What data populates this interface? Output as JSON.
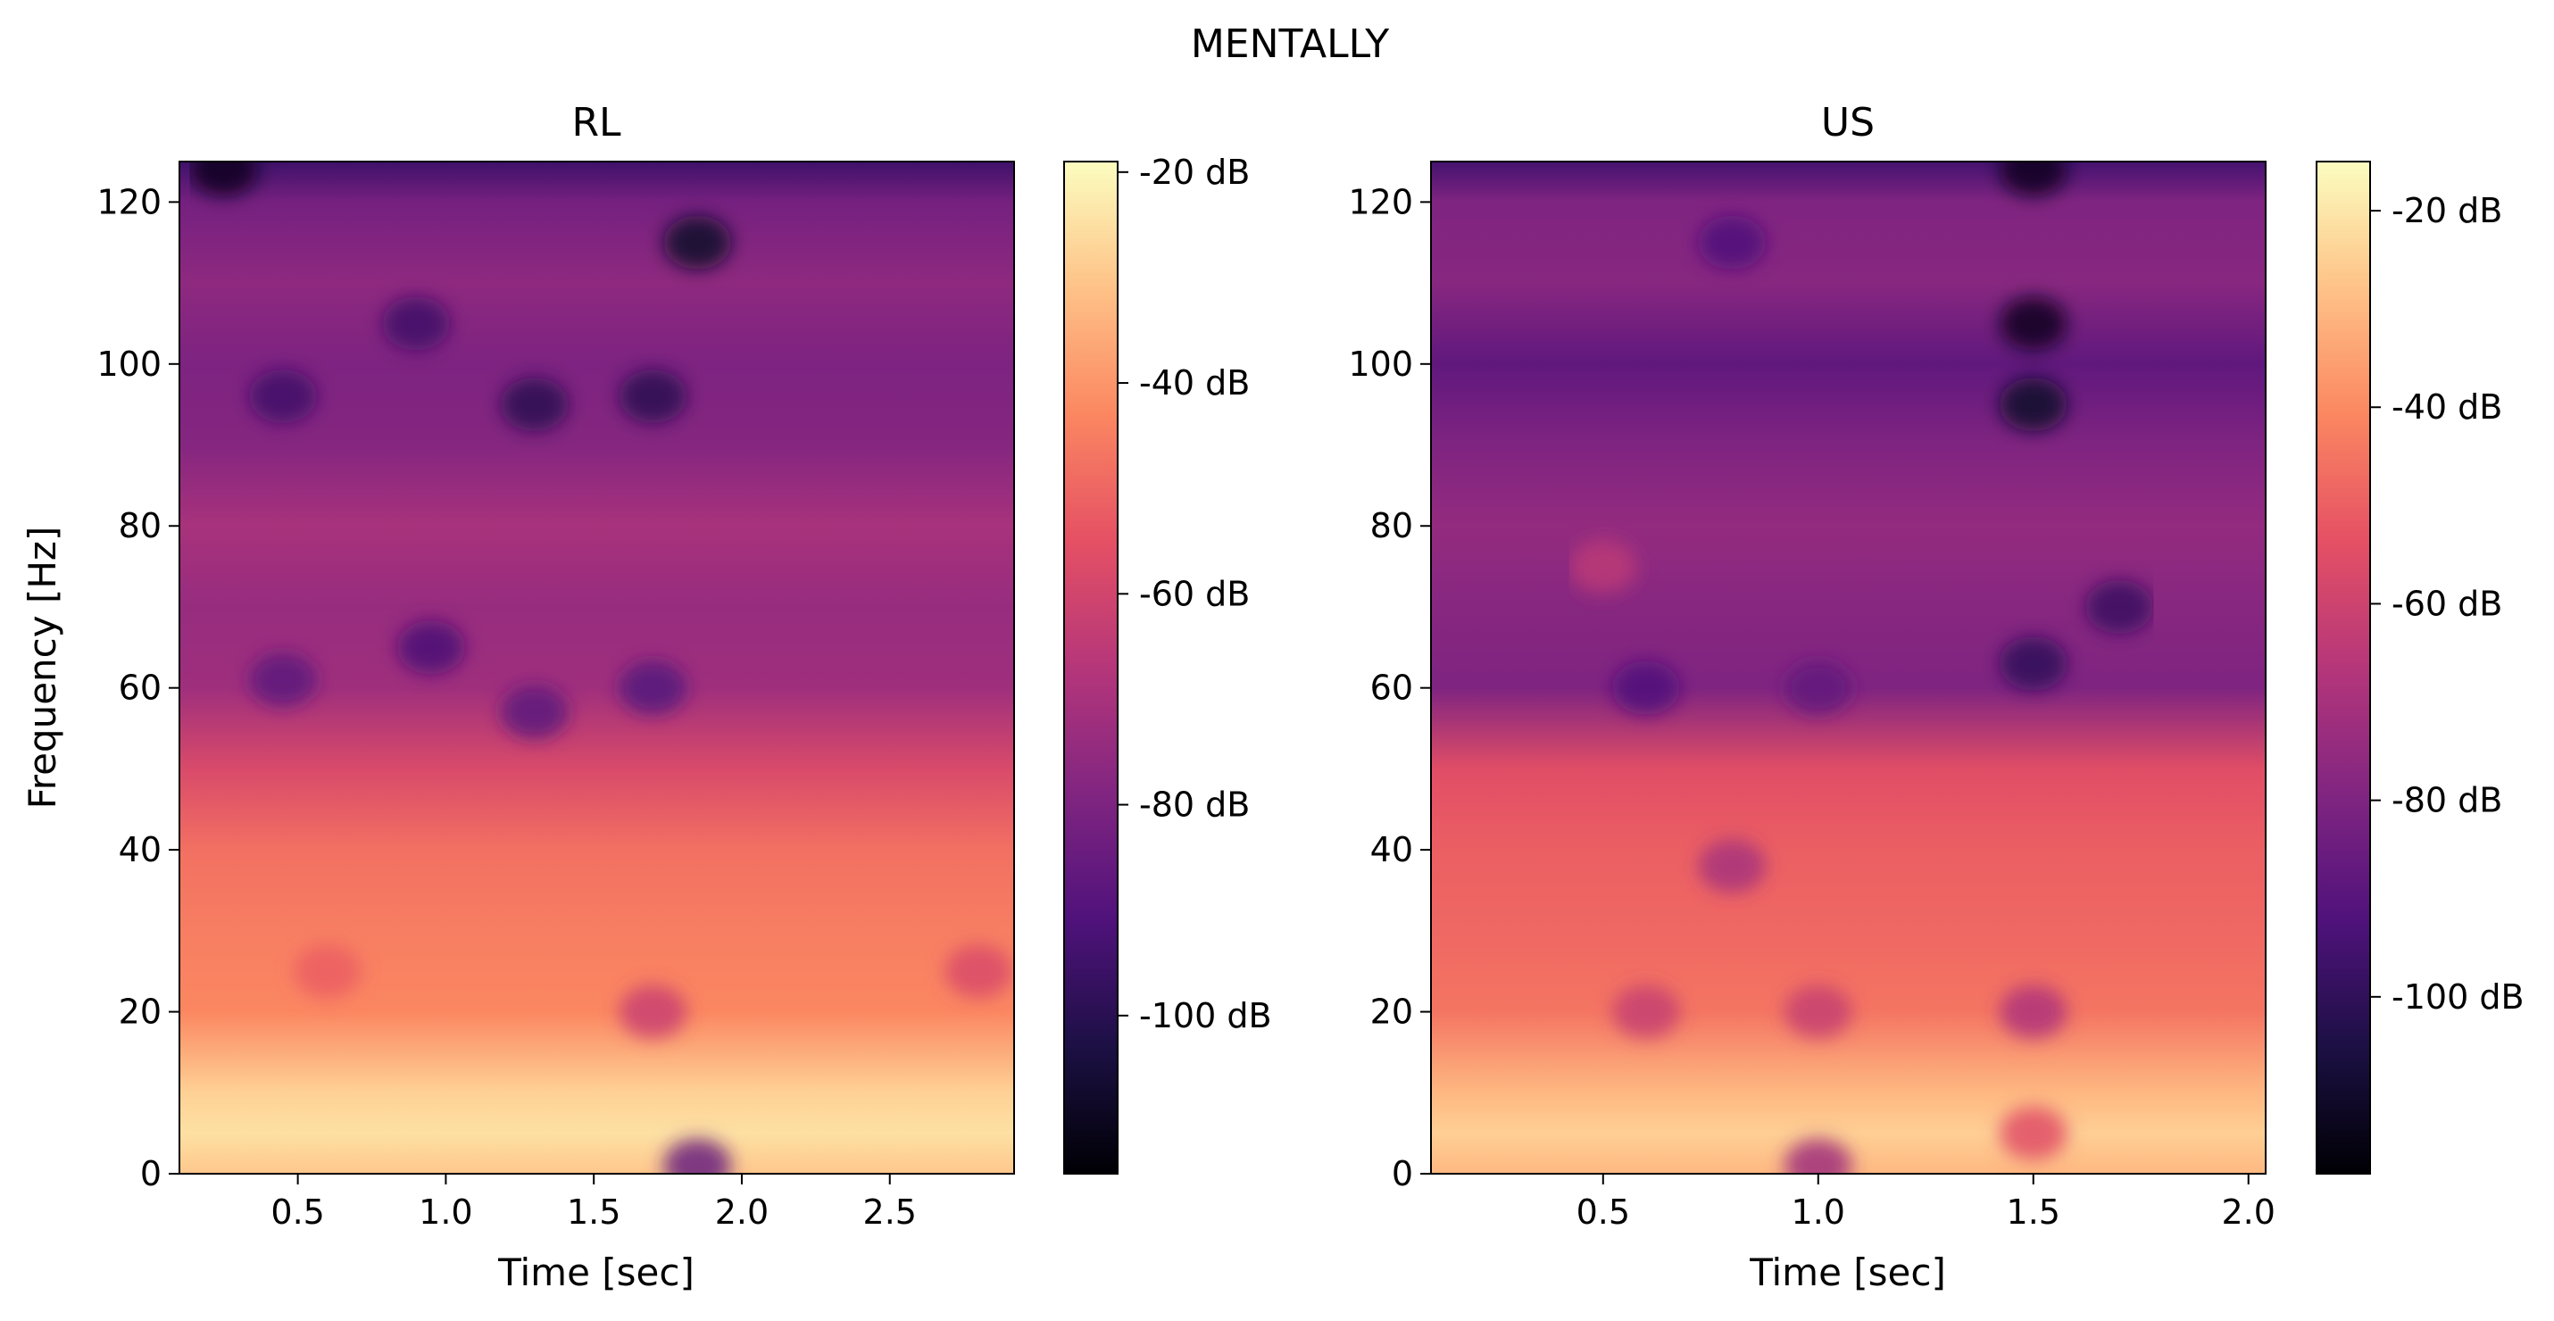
{
  "figure": {
    "title": "MENTALLY"
  },
  "colors": {
    "colormap": "magma",
    "stops": [
      "#000004",
      "#1c1044",
      "#4f127b",
      "#812581",
      "#b5367a",
      "#e55064",
      "#fb8761",
      "#fec287",
      "#fcfdbf"
    ]
  },
  "chart_data": [
    {
      "type": "heatmap",
      "title": "RL",
      "xlabel": "Time [sec]",
      "ylabel": "Frequency [Hz]",
      "xlim": [
        0.1,
        2.92
      ],
      "ylim": [
        0,
        125
      ],
      "xticks": [
        0.5,
        1.0,
        1.5,
        2.0,
        2.5
      ],
      "xtick_labels": [
        "0.5",
        "1.0",
        "1.5",
        "2.0",
        "2.5"
      ],
      "yticks": [
        0,
        20,
        40,
        60,
        80,
        100,
        120
      ],
      "ytick_labels": [
        "0",
        "20",
        "40",
        "60",
        "80",
        "100",
        "120"
      ],
      "colorbar": {
        "range_db": [
          -115,
          -19
        ],
        "ticks": [
          -20,
          -40,
          -60,
          -80,
          -100
        ],
        "tick_labels": [
          "-20 dB",
          "-40 dB",
          "-60 dB",
          "-80 dB",
          "-100 dB"
        ]
      },
      "frequencies_hz": [
        0,
        5,
        10,
        20,
        30,
        40,
        50,
        60,
        70,
        80,
        90,
        100,
        110,
        120,
        125
      ],
      "power_profile_db": [
        -30,
        -25,
        -28,
        -43,
        -45,
        -48,
        -58,
        -72,
        -74,
        -70,
        -78,
        -80,
        -76,
        -82,
        -95
      ],
      "features": [
        {
          "t": 1.85,
          "f": 1,
          "db": -85
        },
        {
          "t": 0.6,
          "f": 25,
          "db": -52
        },
        {
          "t": 1.7,
          "f": 20,
          "db": -62
        },
        {
          "t": 2.8,
          "f": 25,
          "db": -58
        },
        {
          "t": 0.45,
          "f": 61,
          "db": -88
        },
        {
          "t": 0.95,
          "f": 65,
          "db": -92
        },
        {
          "t": 1.3,
          "f": 57,
          "db": -88
        },
        {
          "t": 1.7,
          "f": 60,
          "db": -90
        },
        {
          "t": 1.3,
          "f": 95,
          "db": -100
        },
        {
          "t": 1.7,
          "f": 96,
          "db": -100
        },
        {
          "t": 0.45,
          "f": 96,
          "db": -95
        },
        {
          "t": 1.85,
          "f": 115,
          "db": -108
        },
        {
          "t": 0.9,
          "f": 105,
          "db": -95
        },
        {
          "t": 0.25,
          "f": 124,
          "db": -110
        }
      ]
    },
    {
      "type": "heatmap",
      "title": "US",
      "xlabel": "Time [sec]",
      "ylabel": "",
      "xlim": [
        0.1,
        2.04
      ],
      "ylim": [
        0,
        125
      ],
      "xticks": [
        0.5,
        1.0,
        1.5,
        2.0
      ],
      "xtick_labels": [
        "0.5",
        "1.0",
        "1.5",
        "2.0"
      ],
      "yticks": [
        0,
        20,
        40,
        60,
        80,
        100,
        120
      ],
      "ytick_labels": [
        "0",
        "20",
        "40",
        "60",
        "80",
        "100",
        "120"
      ],
      "colorbar": {
        "range_db": [
          -118,
          -15
        ],
        "ticks": [
          -20,
          -40,
          -60,
          -80,
          -100
        ],
        "tick_labels": [
          "-20 dB",
          "-40 dB",
          "-60 dB",
          "-80 dB",
          "-100 dB"
        ]
      },
      "frequencies_hz": [
        0,
        5,
        10,
        20,
        30,
        40,
        50,
        60,
        70,
        80,
        90,
        100,
        110,
        120,
        125
      ],
      "power_profile_db": [
        -30,
        -25,
        -30,
        -45,
        -48,
        -50,
        -55,
        -80,
        -78,
        -75,
        -80,
        -88,
        -78,
        -80,
        -95
      ],
      "features": [
        {
          "t": 1.5,
          "f": 105,
          "db": -112
        },
        {
          "t": 1.5,
          "f": 95,
          "db": -110
        },
        {
          "t": 1.5,
          "f": 63,
          "db": -100
        },
        {
          "t": 1.7,
          "f": 70,
          "db": -98
        },
        {
          "t": 0.6,
          "f": 60,
          "db": -92
        },
        {
          "t": 1.0,
          "f": 60,
          "db": -88
        },
        {
          "t": 0.8,
          "f": 115,
          "db": -92
        },
        {
          "t": 1.5,
          "f": 124,
          "db": -112
        },
        {
          "t": 0.6,
          "f": 20,
          "db": -62
        },
        {
          "t": 1.0,
          "f": 20,
          "db": -62
        },
        {
          "t": 1.5,
          "f": 20,
          "db": -68
        },
        {
          "t": 0.8,
          "f": 38,
          "db": -70
        },
        {
          "t": 1.0,
          "f": 1,
          "db": -72
        },
        {
          "t": 1.5,
          "f": 5,
          "db": -55
        },
        {
          "t": 0.5,
          "f": 75,
          "db": -65
        }
      ]
    }
  ]
}
